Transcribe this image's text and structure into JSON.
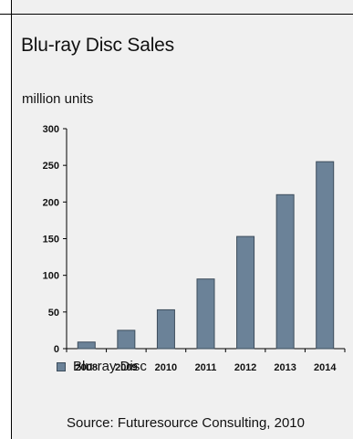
{
  "chart_data": {
    "type": "bar",
    "title": "Blu-ray Disc Sales",
    "ylabel": "million units",
    "xlabel": "",
    "categories": [
      "2008",
      "2009",
      "2010",
      "2011",
      "2012",
      "2013",
      "2014"
    ],
    "series": [
      {
        "name": "Blu-ray Disc",
        "values": [
          9,
          25,
          53,
          95,
          153,
          210,
          255
        ]
      }
    ],
    "ylim": [
      0,
      300
    ],
    "yticks": [
      0,
      50,
      100,
      150,
      200,
      250,
      300
    ],
    "grid": false,
    "legend_position": "bottom-left",
    "bar_color": "#6b8298",
    "bar_edge_color": "#3d4d5c"
  },
  "source": "Source: Futuresource Consulting, 2010"
}
